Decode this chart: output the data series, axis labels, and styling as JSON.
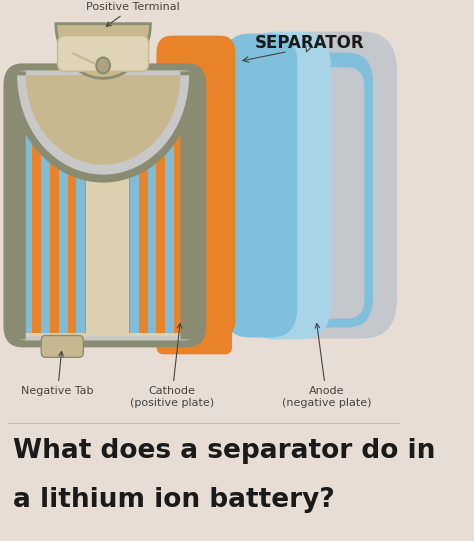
{
  "bg_color": "#e8ddd4",
  "title_line1": "What does a separator do in",
  "title_line2": "a lithium ion battery?",
  "title_fontsize": 19,
  "title_color": "#1a1a1a",
  "separator_label": "SEPARATOR",
  "separator_label_color": "#1a1a1a",
  "separator_label_fontsize": 12,
  "label_fontsize": 8,
  "label_color": "#444444",
  "battery_colors": {
    "outer_shell": "#8a8c72",
    "outer_shell_light": "#b0b090",
    "inner_gray": "#c8c8c8",
    "inner_beige": "#ddd0b0",
    "orange_cathode": "#e8832a",
    "blue_separator": "#80c0dc",
    "gray_anode_outer": "#c4c8cc",
    "gray_anode_inner": "#b0b8c0",
    "terminal_beige": "#c8b890",
    "terminal_light": "#e0d4b8",
    "stripe_orange": "#e8832a",
    "stripe_blue": "#80bcd8",
    "neg_tab": "#c8b890"
  }
}
